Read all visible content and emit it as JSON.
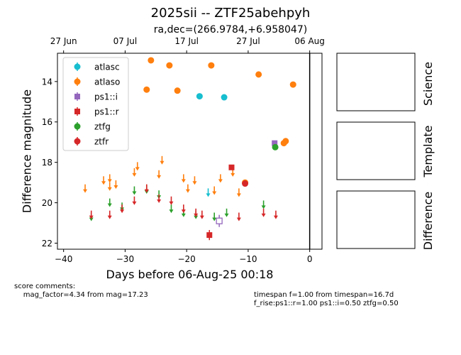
{
  "title": "2025sii -- ZTF25abehpyh",
  "subtitle": "ra,dec=(266.9784,+6.958047)",
  "panels": {
    "science": "Science",
    "template": "Template",
    "difference": "Difference"
  },
  "comments": {
    "left": "score comments:\n    mag_factor=4.34 from mag=17.23",
    "right": "timespan f=1.00 from timespan=16.7d\nf_rise:ps1::r=1.00 ps1::i=0.50 ztfg=0.50"
  },
  "chart_data": {
    "type": "scatter",
    "xlabel": "Days before 06-Aug-25 00:18",
    "ylabel": "Difference magnitude",
    "xlim": [
      -41,
      2
    ],
    "ylim": [
      22.3,
      12.6
    ],
    "xticks": [
      -40,
      -30,
      -20,
      -10,
      0
    ],
    "yticks": [
      14,
      16,
      18,
      20,
      22
    ],
    "top_axis": {
      "ticks": [
        {
          "label": "27 Jun",
          "x": -40
        },
        {
          "label": "07 Jul",
          "x": -30
        },
        {
          "label": "17 Jul",
          "x": -20
        },
        {
          "label": "27 Jul",
          "x": -10
        },
        {
          "label": "06 Aug",
          "x": 0
        }
      ]
    },
    "vline_x": 0,
    "legend": {
      "position": "upper left"
    },
    "series": [
      {
        "name": "atlasc",
        "color": "#17becf",
        "marker": "circle",
        "points": [
          {
            "x": -17.9,
            "y": 14.73
          },
          {
            "x": -13.9,
            "y": 14.78
          }
        ],
        "upper_limits": [
          {
            "x": -16.5,
            "y": 19.5
          }
        ]
      },
      {
        "name": "atlaso",
        "color": "#ff7f0e",
        "marker": "circle",
        "points": [
          {
            "x": -25.8,
            "y": 12.95
          },
          {
            "x": -26.5,
            "y": 14.4
          },
          {
            "x": -22.8,
            "y": 13.2
          },
          {
            "x": -21.5,
            "y": 14.45
          },
          {
            "x": -16,
            "y": 13.2
          },
          {
            "x": -8.3,
            "y": 13.65
          },
          {
            "x": -2.7,
            "y": 14.15
          },
          {
            "x": -10.5,
            "y": 19.0
          },
          {
            "x": -4.2,
            "y": 17.05
          },
          {
            "x": -3.9,
            "y": 16.95
          }
        ],
        "upper_limits": [
          {
            "x": -36.5,
            "y": 19.3
          },
          {
            "x": -33.5,
            "y": 18.9
          },
          {
            "x": -32.5,
            "y": 18.8
          },
          {
            "x": -32.5,
            "y": 19.2
          },
          {
            "x": -31.5,
            "y": 19.1
          },
          {
            "x": -28.5,
            "y": 18.5
          },
          {
            "x": -28,
            "y": 18.2
          },
          {
            "x": -26.5,
            "y": 19.3
          },
          {
            "x": -24.5,
            "y": 18.6
          },
          {
            "x": -24,
            "y": 17.9
          },
          {
            "x": -20.5,
            "y": 18.8
          },
          {
            "x": -19.8,
            "y": 19.3
          },
          {
            "x": -18.7,
            "y": 18.9
          },
          {
            "x": -15.5,
            "y": 19.4
          },
          {
            "x": -14.5,
            "y": 18.8
          },
          {
            "x": -12.5,
            "y": 18.5
          },
          {
            "x": -11.5,
            "y": 19.5
          }
        ]
      },
      {
        "name": "ps1::i",
        "color": "#9467bd",
        "marker": "square",
        "points": [
          {
            "x": -5.7,
            "y": 17.05
          }
        ],
        "open_points": [
          {
            "x": -14.7,
            "y": 20.9,
            "err": 0.3
          }
        ]
      },
      {
        "name": "ps1::r",
        "color": "#d62728",
        "marker": "square",
        "points": [
          {
            "x": -16.3,
            "y": 21.6,
            "err": 0.25
          },
          {
            "x": -12.7,
            "y": 18.25
          }
        ]
      },
      {
        "name": "ztfg",
        "color": "#2ca02c",
        "marker": "circle",
        "points": [
          {
            "x": -5.6,
            "y": 17.25
          }
        ],
        "upper_limits": [
          {
            "x": -35.5,
            "y": 20.7
          },
          {
            "x": -32.5,
            "y": 20.0
          },
          {
            "x": -30.5,
            "y": 20.2
          },
          {
            "x": -28.5,
            "y": 19.4
          },
          {
            "x": -26.5,
            "y": 19.35
          },
          {
            "x": -24.5,
            "y": 19.6
          },
          {
            "x": -22.5,
            "y": 20.3
          },
          {
            "x": -20.5,
            "y": 20.5
          },
          {
            "x": -18.5,
            "y": 20.6
          },
          {
            "x": -15.5,
            "y": 20.7
          },
          {
            "x": -13.5,
            "y": 20.5
          },
          {
            "x": -7.5,
            "y": 20.1
          }
        ]
      },
      {
        "name": "ztfr",
        "color": "#d62728",
        "marker": "circle",
        "points": [
          {
            "x": -10.5,
            "y": 19.05
          }
        ],
        "upper_limits": [
          {
            "x": -35.5,
            "y": 20.6
          },
          {
            "x": -32.5,
            "y": 20.6
          },
          {
            "x": -30.5,
            "y": 20.3
          },
          {
            "x": -28.5,
            "y": 19.9
          },
          {
            "x": -26.5,
            "y": 19.3
          },
          {
            "x": -24.5,
            "y": 19.8
          },
          {
            "x": -22.5,
            "y": 19.9
          },
          {
            "x": -20.5,
            "y": 20.3
          },
          {
            "x": -18.5,
            "y": 20.5
          },
          {
            "x": -17.5,
            "y": 20.6
          },
          {
            "x": -11.5,
            "y": 20.7
          },
          {
            "x": -7.5,
            "y": 20.5
          },
          {
            "x": -5.5,
            "y": 20.6
          }
        ]
      }
    ]
  }
}
